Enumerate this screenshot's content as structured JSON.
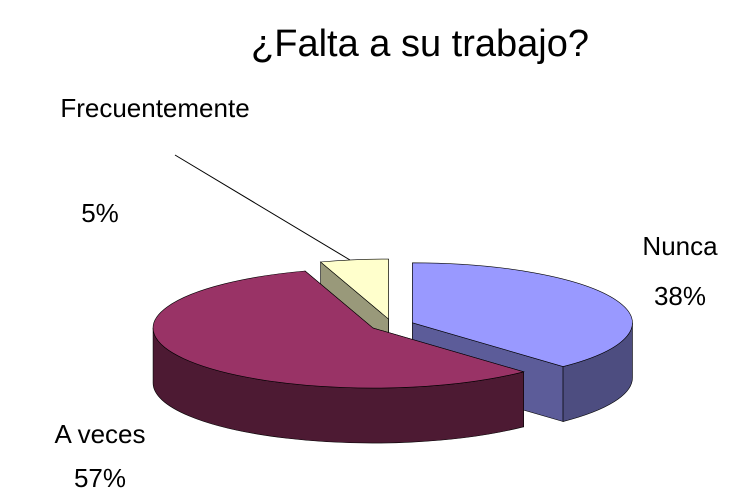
{
  "chart_data": {
    "type": "pie",
    "title": "¿Falta a su trabajo?",
    "categories": [
      "Nunca",
      "A veces",
      "Frecuentemente"
    ],
    "values": [
      38,
      57,
      5
    ],
    "value_labels": [
      "38%",
      "57%",
      "5%"
    ],
    "colors": [
      "#9999ff",
      "#993366",
      "#ffffcc"
    ]
  }
}
